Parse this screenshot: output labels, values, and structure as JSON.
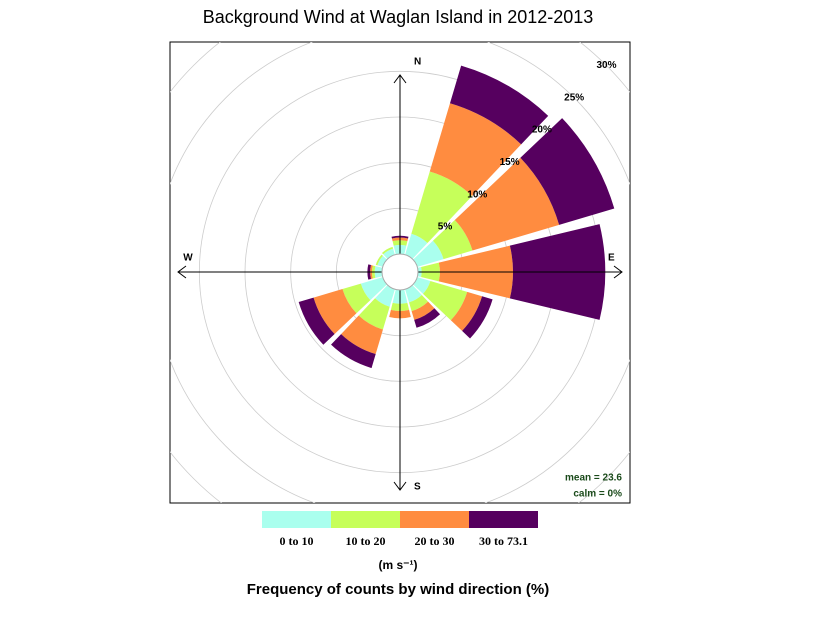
{
  "chart_data": {
    "type": "windrose",
    "title": "Background Wind at Waglan Island in 2012-2013",
    "directions": [
      0,
      30,
      60,
      90,
      120,
      150,
      180,
      210,
      240,
      270,
      300,
      330
    ],
    "compass_labels": [
      "N",
      "E",
      "S",
      "W"
    ],
    "series": [
      {
        "name": "0 to 10",
        "color": "#aaffee",
        "values": [
          1.0,
          2.4,
          3.0,
          0.4,
          1.5,
          1.5,
          1.5,
          2.0,
          2.5,
          0.8,
          0.6,
          0.7
        ]
      },
      {
        "name": "10 to 20",
        "color": "#c6ff5a",
        "values": [
          0.5,
          7.1,
          3.3,
          2.0,
          4.2,
          1.0,
          0.8,
          2.6,
          2.1,
          0.3,
          0.2,
          0.2
        ]
      },
      {
        "name": "20 to 30",
        "color": "#ff8c40",
        "values": [
          0.3,
          7.8,
          9.9,
          8.0,
          1.7,
          1.0,
          0.8,
          2.8,
          3.3,
          0.2,
          0,
          0
        ]
      },
      {
        "name": "30 to 73.1",
        "color": "#56005f",
        "values": [
          0.2,
          4.3,
          6.3,
          10.1,
          1.2,
          0.9,
          0,
          1.6,
          1.7,
          0.3,
          0,
          0
        ]
      }
    ],
    "rlim": [
      0,
      30
    ],
    "rticks": [
      {
        "value": 5,
        "label": "5%"
      },
      {
        "value": 10,
        "label": "10%"
      },
      {
        "value": 15,
        "label": "15%"
      },
      {
        "value": 20,
        "label": "20%"
      },
      {
        "value": 25,
        "label": "25%"
      },
      {
        "value": 30,
        "label": "30%"
      }
    ],
    "annotations": [
      "mean = 23.6",
      "calm = 0%"
    ],
    "legend_units": "(m s⁻¹)",
    "xlabel": "Frequency of counts by wind direction (%)"
  }
}
